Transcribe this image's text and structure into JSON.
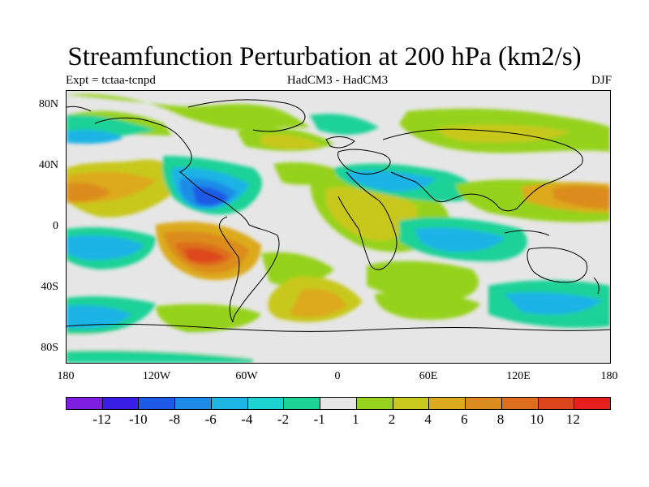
{
  "title": "Streamfunction Perturbation at 200 hPa (km2/s)",
  "subtitle_left": "Expt = tctaa-tcnpd",
  "subtitle_center": "HadCM3 - HadCM3",
  "subtitle_right": "DJF",
  "lat_labels": [
    "80N",
    "40N",
    "0",
    "40S",
    "80S"
  ],
  "lon_labels": [
    "180",
    "120W",
    "60W",
    "0",
    "60E",
    "120E",
    "180"
  ],
  "colorbar": {
    "colors": [
      "#7d1ee0",
      "#3a1ee6",
      "#1e5ae6",
      "#1e8ce6",
      "#1eb4e6",
      "#1ed2d2",
      "#1ed296",
      "#e6e6e6",
      "#96d21e",
      "#c8c81e",
      "#dcaa1e",
      "#dc8c1e",
      "#dc6e1e",
      "#dc461e",
      "#e61e1e"
    ],
    "labels": [
      "-12",
      "-10",
      "-8",
      "-6",
      "-4",
      "-2",
      "-1",
      "1",
      "2",
      "4",
      "6",
      "8",
      "10",
      "12"
    ]
  }
}
